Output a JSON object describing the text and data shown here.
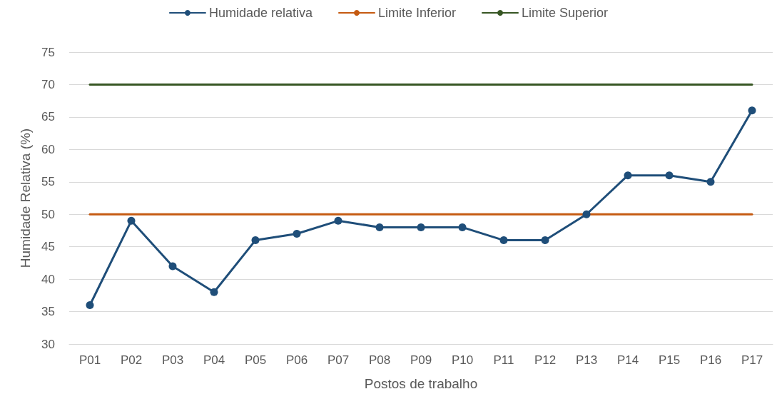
{
  "chart_data": {
    "type": "line",
    "xlabel": "Postos de trabalho",
    "ylabel": "Humidade Relativa (%)",
    "categories": [
      "P01",
      "P02",
      "P03",
      "P04",
      "P05",
      "P06",
      "P07",
      "P08",
      "P09",
      "P10",
      "P11",
      "P12",
      "P13",
      "P14",
      "P15",
      "P16",
      "P17"
    ],
    "series": [
      {
        "name": "Humidade relativa",
        "color": "#1f4e79",
        "marker": "circle",
        "values": [
          36,
          49,
          42,
          38,
          46,
          47,
          49,
          48,
          48,
          48,
          46,
          46,
          50,
          56,
          56,
          55,
          66
        ]
      },
      {
        "name": "Limite Inferior",
        "color": "#c55a11",
        "marker": "none",
        "values": [
          50,
          50,
          50,
          50,
          50,
          50,
          50,
          50,
          50,
          50,
          50,
          50,
          50,
          50,
          50,
          50,
          50
        ]
      },
      {
        "name": "Limite Superior",
        "color": "#375623",
        "marker": "none",
        "values": [
          70,
          70,
          70,
          70,
          70,
          70,
          70,
          70,
          70,
          70,
          70,
          70,
          70,
          70,
          70,
          70,
          70
        ]
      }
    ],
    "ylim": [
      30,
      75
    ],
    "yticks": [
      30,
      35,
      40,
      45,
      50,
      55,
      60,
      65,
      70,
      75
    ],
    "grid": "y",
    "legend": "top",
    "line_style": "solid"
  }
}
